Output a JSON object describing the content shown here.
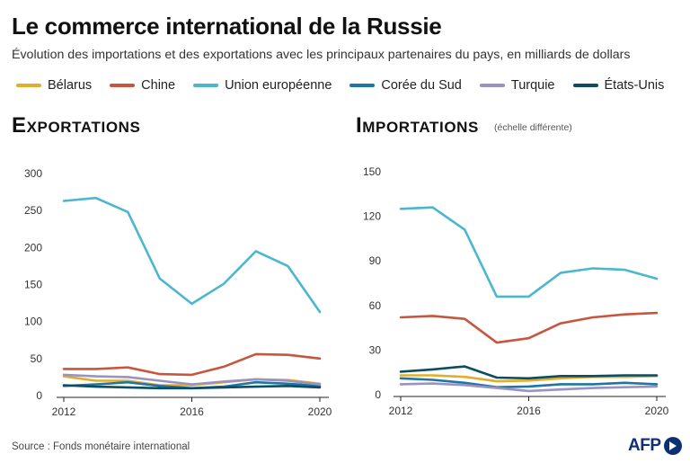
{
  "title": "Le commerce international de la Russie",
  "subtitle": "Évolution des importations et des exportations avec les principaux partenaires du pays, en milliards de dollars",
  "legend": [
    {
      "label": "Bélarus",
      "color": "#e3ad2b"
    },
    {
      "label": "Chine",
      "color": "#c8553d"
    },
    {
      "label": "Union européenne",
      "color": "#4bb7cf"
    },
    {
      "label": "Corée du Sud",
      "color": "#1f75a8"
    },
    {
      "label": "Turquie",
      "color": "#9a93c2"
    },
    {
      "label": "États-Unis",
      "color": "#0d4d63"
    }
  ],
  "panels": {
    "exports_title": "Exportations",
    "imports_title": "Importations",
    "imports_note": "(échelle différente)"
  },
  "source": "Source : Fonds monétaire international",
  "logo": "AFP",
  "chart_data": [
    {
      "type": "line",
      "title": "Exportations",
      "x": [
        2012,
        2013,
        2014,
        2015,
        2016,
        2017,
        2018,
        2019,
        2020
      ],
      "xticks": [
        "2012",
        "2016",
        "2020"
      ],
      "yticks": [
        0,
        50,
        100,
        150,
        200,
        250,
        300
      ],
      "ylim": [
        0,
        300
      ],
      "grid": false,
      "series": [
        {
          "name": "Bélarus",
          "color": "#e3ad2b",
          "values": [
            26,
            20,
            20,
            14,
            14,
            18,
            22,
            21,
            16
          ]
        },
        {
          "name": "Chine",
          "color": "#c8553d",
          "values": [
            36,
            36,
            38,
            29,
            28,
            39,
            56,
            55,
            50
          ]
        },
        {
          "name": "Union européenne",
          "color": "#4bb7cf",
          "values": [
            263,
            267,
            248,
            158,
            124,
            151,
            195,
            175,
            113
          ]
        },
        {
          "name": "Corée du Sud",
          "color": "#1f75a8",
          "values": [
            13,
            15,
            18,
            13,
            10,
            12,
            18,
            16,
            13
          ]
        },
        {
          "name": "Turquie",
          "color": "#9a93c2",
          "values": [
            28,
            26,
            25,
            20,
            15,
            19,
            22,
            20,
            15
          ]
        },
        {
          "name": "États-Unis",
          "color": "#0d4d63",
          "values": [
            14,
            12,
            11,
            10,
            10,
            11,
            12,
            13,
            11
          ]
        }
      ]
    },
    {
      "type": "line",
      "title": "Importations",
      "x": [
        2012,
        2013,
        2014,
        2015,
        2016,
        2017,
        2018,
        2019,
        2020
      ],
      "xticks": [
        "2012",
        "2016",
        "2020"
      ],
      "yticks": [
        0,
        30,
        60,
        90,
        120,
        150
      ],
      "ylim": [
        0,
        150
      ],
      "grid": false,
      "series": [
        {
          "name": "Bélarus",
          "color": "#e3ad2b",
          "values": [
            13,
            13,
            12,
            9,
            9.5,
            11,
            12,
            12,
            12.5
          ]
        },
        {
          "name": "Chine",
          "color": "#c8553d",
          "values": [
            52,
            53,
            51,
            35,
            38,
            48,
            52,
            54,
            55
          ]
        },
        {
          "name": "Union européenne",
          "color": "#4bb7cf",
          "values": [
            125,
            126,
            111,
            66,
            66,
            82,
            85,
            84,
            78
          ]
        },
        {
          "name": "Corée du Sud",
          "color": "#1f75a8",
          "values": [
            11,
            10,
            8,
            5,
            5.5,
            7,
            7,
            8,
            7
          ]
        },
        {
          "name": "Turquie",
          "color": "#9a93c2",
          "values": [
            7,
            7.5,
            6.5,
            4.5,
            2.5,
            3.5,
            4.5,
            5,
            5.5
          ]
        },
        {
          "name": "États-Unis",
          "color": "#0d4d63",
          "values": [
            15.5,
            17,
            19,
            11.5,
            11,
            12.5,
            12.5,
            13,
            13
          ]
        }
      ]
    }
  ]
}
